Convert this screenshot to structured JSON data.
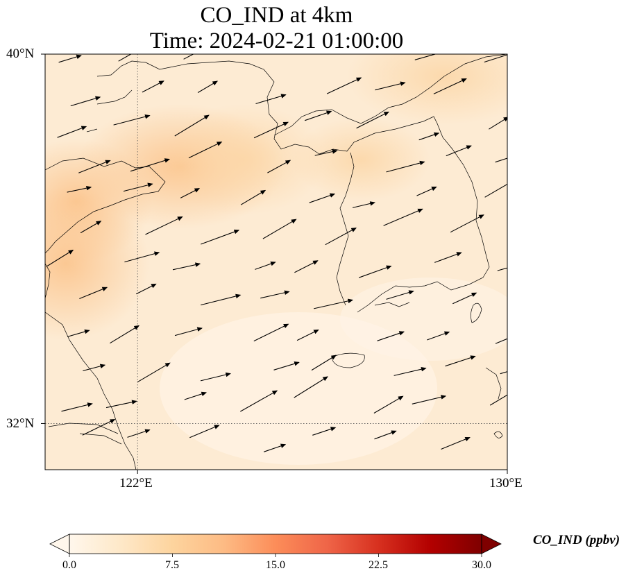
{
  "figure": {
    "title_line1": "CO_IND at 4km",
    "title_line2": "Time: 2024-02-21 01:00:00"
  },
  "axes": {
    "lat_ticks": [
      {
        "value": 40,
        "label": "40°N"
      },
      {
        "value": 32,
        "label": "32°N"
      }
    ],
    "lon_ticks": [
      {
        "value": 122,
        "label": "122°E"
      },
      {
        "value": 130,
        "label": "130°E"
      }
    ],
    "lon_range": [
      120,
      130
    ],
    "lat_range": [
      31,
      40
    ],
    "gridlines": "dotted"
  },
  "colorbar": {
    "label": "CO_IND (ppbv)",
    "colormap": "OrRd",
    "min": 0.0,
    "max": 30.0,
    "extend": "both",
    "ticks": [
      "0.0",
      "7.5",
      "15.0",
      "22.5",
      "30.0"
    ],
    "colors": [
      "#fff7ec",
      "#fee8c8",
      "#fdd49e",
      "#fdbb84",
      "#fc8d59",
      "#ef6548",
      "#d7301f",
      "#b30000",
      "#7f0000"
    ]
  },
  "wind_vectors": "eastward to east-northeastward flow across the domain"
}
